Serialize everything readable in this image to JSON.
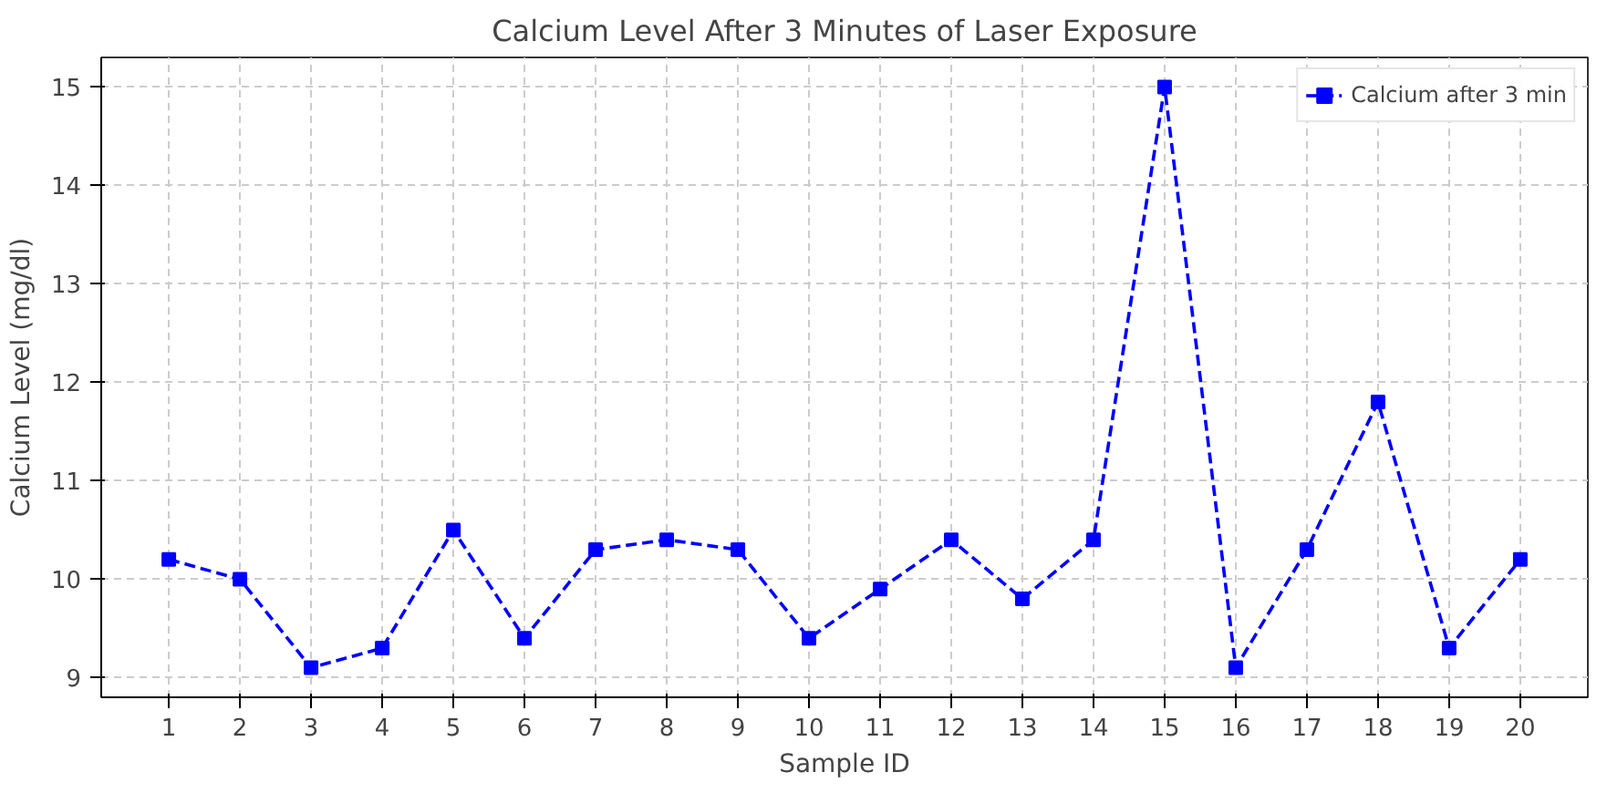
{
  "chart_data": {
    "type": "line",
    "title": "Calcium Level After 3 Minutes of Laser Exposure",
    "xlabel": "Sample ID",
    "ylabel": "Calcium Level (mg/dl)",
    "x": [
      1,
      2,
      3,
      4,
      5,
      6,
      7,
      8,
      9,
      10,
      11,
      12,
      13,
      14,
      15,
      16,
      17,
      18,
      19,
      20
    ],
    "series": [
      {
        "name": "Calcium after 3 min",
        "color": "#0000ff",
        "values": [
          10.2,
          10.0,
          9.1,
          9.3,
          10.5,
          9.4,
          10.3,
          10.4,
          10.3,
          9.4,
          9.9,
          10.4,
          9.8,
          10.4,
          15.0,
          9.1,
          10.3,
          11.8,
          9.3,
          10.2
        ]
      }
    ],
    "xlim": [
      0.05,
      20.95
    ],
    "xticks": [
      1,
      2,
      3,
      4,
      5,
      6,
      7,
      8,
      9,
      10,
      11,
      12,
      13,
      14,
      15,
      16,
      17,
      18,
      19,
      20
    ],
    "ylim": [
      8.8,
      15.3
    ],
    "yticks": [
      9,
      10,
      11,
      12,
      13,
      14,
      15
    ],
    "grid": true,
    "legend": "top right",
    "marker": "square",
    "line_style": "dashed"
  }
}
